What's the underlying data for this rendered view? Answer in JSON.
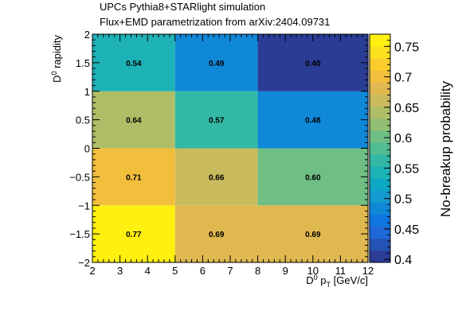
{
  "chart_data": {
    "type": "heatmap",
    "title_lines": [
      "UPCs Pythia8+STARlight simulation",
      "Flux+EMD parametrization from arXiv:2404.09731"
    ],
    "xlabel": {
      "main": "D",
      "sup": "0",
      "mid": " p",
      "sub": "T",
      "tail": " [GeV/c]"
    },
    "ylabel": {
      "main": "D",
      "sup": "0",
      "tail": " rapidity"
    },
    "zlabel": "No-breakup probability",
    "xlim": [
      2,
      12
    ],
    "ylim": [
      -2,
      2
    ],
    "zlim": [
      0.395,
      0.77
    ],
    "x_ticks": [
      2,
      3,
      4,
      5,
      6,
      7,
      8,
      9,
      10,
      11,
      12
    ],
    "x_tick_labels": [
      "2",
      "3",
      "4",
      "5",
      "6",
      "7",
      "8",
      "9",
      "10",
      "11",
      "12"
    ],
    "y_ticks": [
      -2,
      -1.5,
      -1,
      -0.5,
      0,
      0.5,
      1,
      1.5,
      2
    ],
    "y_tick_labels": [
      "−2",
      "−1.5",
      "−1",
      "−0.5",
      "0",
      "0.5",
      "1",
      "1.5",
      "2"
    ],
    "z_ticks": [
      0.4,
      0.45,
      0.5,
      0.55,
      0.6,
      0.65,
      0.7,
      0.75
    ],
    "z_tick_labels": [
      "0.4",
      "0.45",
      "0.5",
      "0.55",
      "0.6",
      "0.65",
      "0.7",
      "0.75"
    ],
    "x_edges": [
      2,
      5,
      8,
      12
    ],
    "y_edges": [
      -2,
      -1,
      0,
      1,
      2
    ],
    "values": [
      [
        0.77,
        0.69,
        0.69
      ],
      [
        0.71,
        0.66,
        0.6
      ],
      [
        0.64,
        0.57,
        0.48
      ],
      [
        0.54,
        0.49,
        0.4
      ]
    ],
    "value_labels": [
      [
        "0.77",
        "0.69",
        "0.69"
      ],
      [
        "0.71",
        "0.66",
        "0.60"
      ],
      [
        "0.64",
        "0.57",
        "0.48"
      ],
      [
        "0.54",
        "0.49",
        "0.40"
      ]
    ],
    "palette": [
      "#2a3c94",
      "#2553b5",
      "#1f68d8",
      "#1177e0",
      "#0f88d8",
      "#139bd0",
      "#0fa8c4",
      "#1db2b6",
      "#33b8a6",
      "#50bc94",
      "#6fbe84",
      "#92bf73",
      "#b0bd67",
      "#cabb5e",
      "#e0b850",
      "#f2bf3c",
      "#fbcd2c",
      "#fde01e",
      "#fff00f"
    ],
    "grid": false,
    "legend": "colorbar-right"
  }
}
